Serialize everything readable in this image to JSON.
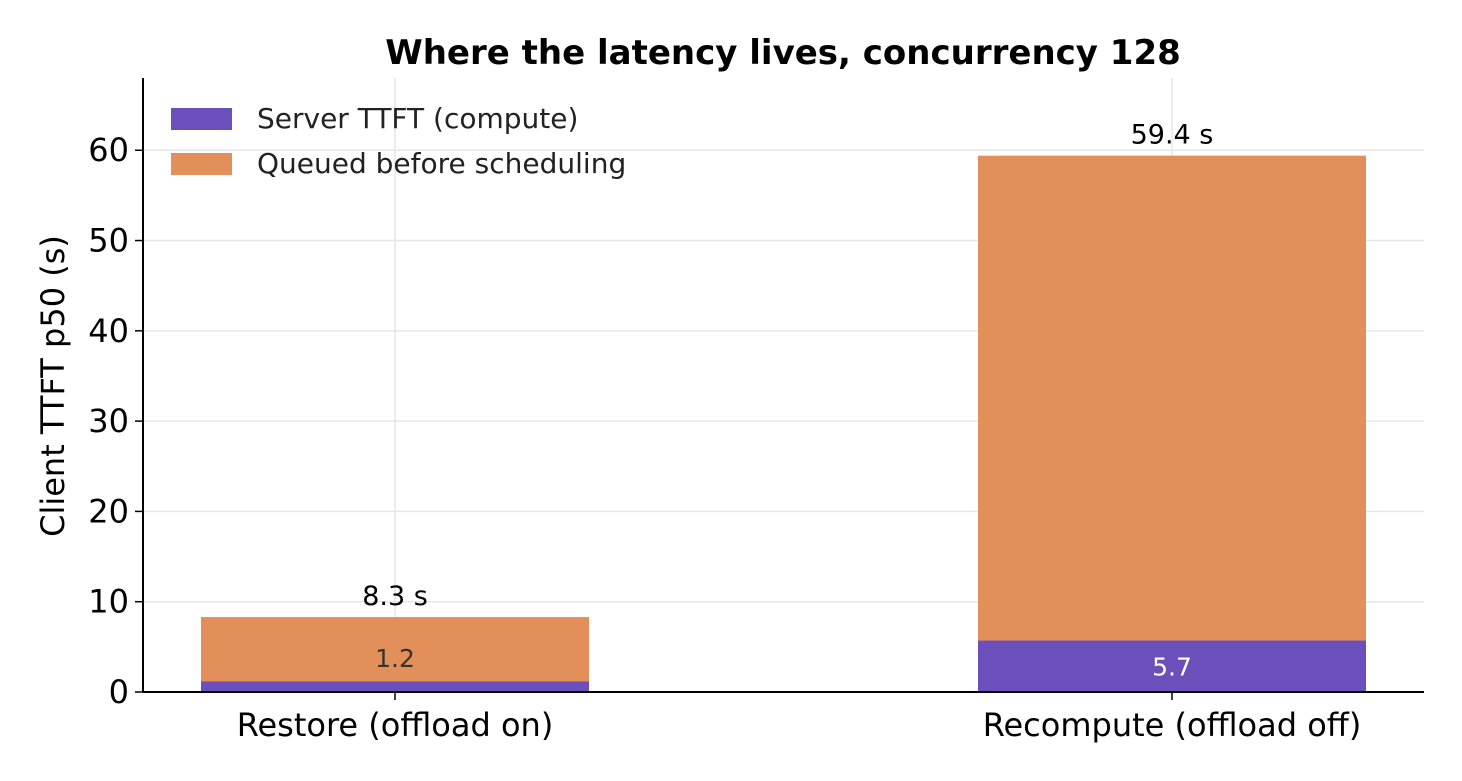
{
  "chart_data": {
    "type": "bar",
    "stacked": true,
    "title": "Where the latency lives, concurrency 128",
    "xlabel": "",
    "ylabel": "Client TTFT p50 (s)",
    "categories": [
      "Restore (offload on)",
      "Recompute (offload off)"
    ],
    "series": [
      {
        "name": "Server TTFT (compute)",
        "color": "#6b4fbb",
        "values": [
          1.2,
          5.7
        ]
      },
      {
        "name": "Queued before scheduling",
        "color": "#e38f5a",
        "values": [
          7.1,
          53.7
        ]
      }
    ],
    "segment_labels": [
      "1.2",
      "5.7"
    ],
    "total_labels": [
      "8.3 s",
      "59.4 s"
    ],
    "ylim": [
      0,
      68
    ],
    "yticks": [
      0,
      10,
      20,
      30,
      40,
      50,
      60
    ],
    "grid": true,
    "legend_position": "top-left"
  }
}
